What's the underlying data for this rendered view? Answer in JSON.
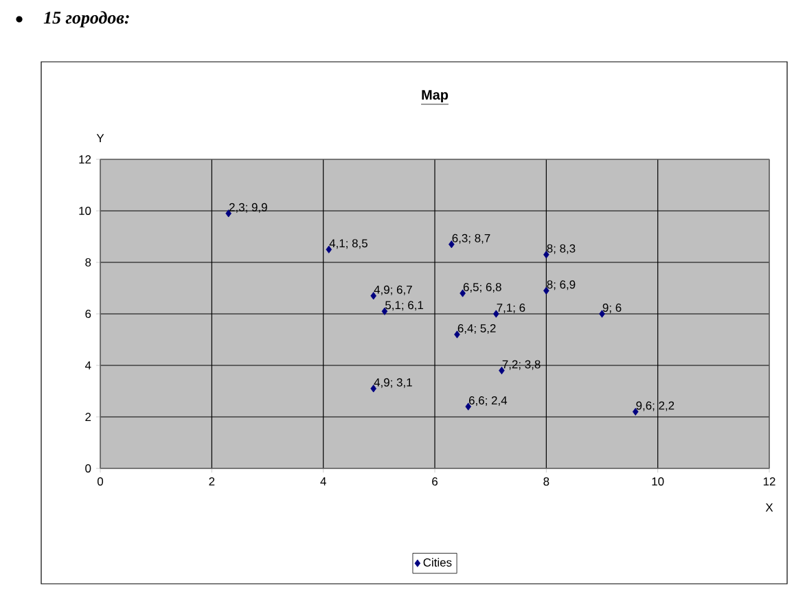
{
  "chart_data": {
    "type": "scatter",
    "title": "Map",
    "xlabel": "X",
    "ylabel": "Y",
    "annotations": [
      "15 городов:"
    ],
    "xlim": [
      0,
      12
    ],
    "ylim": [
      0,
      12
    ],
    "xticks": [
      0,
      2,
      4,
      6,
      8,
      10,
      12
    ],
    "yticks": [
      0,
      2,
      4,
      6,
      8,
      10,
      12
    ],
    "grid": true,
    "legend": "bottom",
    "marker": "diamond",
    "series": [
      {
        "name": "Cities",
        "color": "#000080",
        "x": [
          2.3,
          4.1,
          6.3,
          8,
          4.9,
          6.5,
          8,
          5.1,
          7.1,
          9,
          6.4,
          7.2,
          4.9,
          6.6,
          9.6
        ],
        "values": [
          9.9,
          8.5,
          8.7,
          8.3,
          6.7,
          6.8,
          6.9,
          6.1,
          6,
          6,
          5.2,
          3.8,
          3.1,
          2.4,
          2.2
        ],
        "value_labels": [
          "2,3; 9,9",
          "4,1; 8,5",
          "6,3; 8,7",
          "8; 8,3",
          "4,9; 6,7",
          "6,5; 6,8",
          "8; 6,9",
          "5,1; 6,1",
          "7,1; 6",
          "9; 6",
          "6,4; 5,2",
          "7,2; 3,8",
          "4,9; 3,1",
          "6,6; 2,4",
          "9,6; 2,2"
        ]
      }
    ]
  }
}
